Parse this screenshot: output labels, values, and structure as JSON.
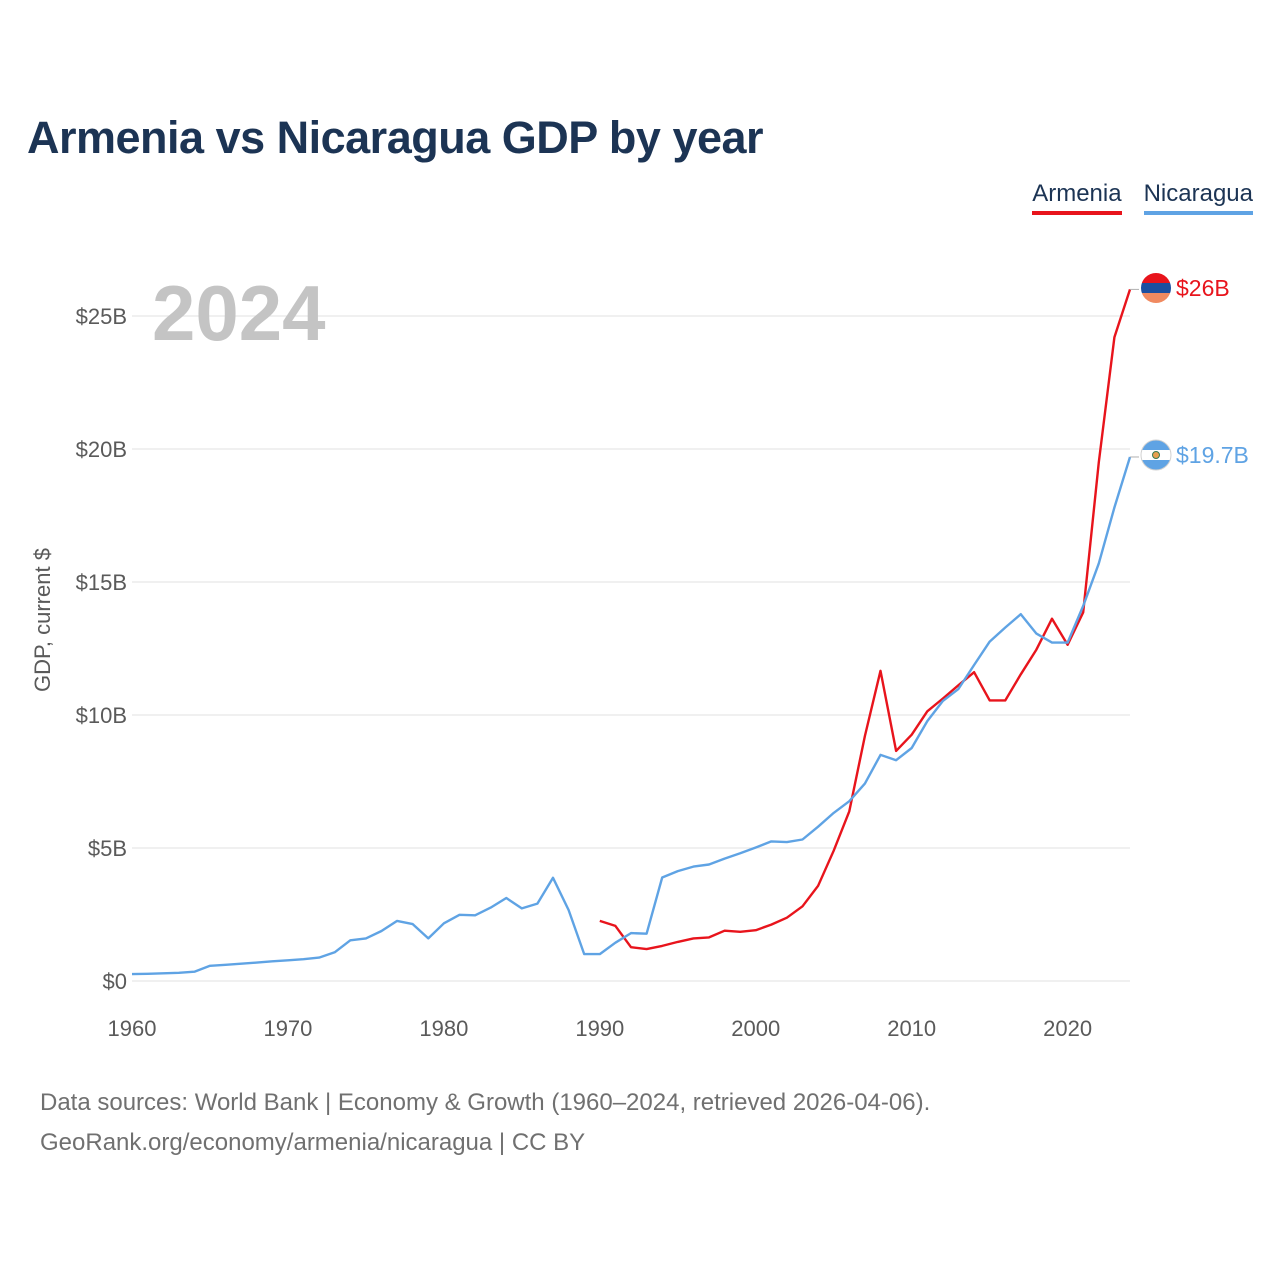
{
  "title": "Armenia vs Nicaragua GDP by year",
  "legend": {
    "armenia": "Armenia",
    "nicaragua": "Nicaragua"
  },
  "year_label": "2024",
  "source": {
    "line1": "Data sources: World Bank | Economy & Growth (1960–2024, retrieved 2026-04-06).",
    "line2": "GeoRank.org/economy/armenia/nicaragua | CC BY"
  },
  "colors": {
    "armenia": "#e8141c",
    "nicaragua": "#5fa3e4",
    "grid": "#e6e6e6",
    "title": "#1c3454"
  },
  "chart_data": {
    "type": "line",
    "title": "Armenia vs Nicaragua GDP by year",
    "xlabel": "",
    "ylabel": "GDP, current $",
    "xlim": [
      1960,
      2024
    ],
    "ylim": [
      0,
      27
    ],
    "x_ticks": [
      1960,
      1970,
      1980,
      1990,
      2000,
      2010,
      2020
    ],
    "y_ticks": [
      {
        "value": 0,
        "label": "$0"
      },
      {
        "value": 5,
        "label": "$5B"
      },
      {
        "value": 10,
        "label": "$10B"
      },
      {
        "value": 15,
        "label": "$15B"
      },
      {
        "value": 20,
        "label": "$20B"
      },
      {
        "value": 25,
        "label": "$25B"
      }
    ],
    "series": [
      {
        "name": "Armenia",
        "color": "#e8141c",
        "end_label": "$26B",
        "icon": "armenia-flag-icon",
        "x": [
          1990,
          1991,
          1992,
          1993,
          1994,
          1995,
          1996,
          1997,
          1998,
          1999,
          2000,
          2001,
          2002,
          2003,
          2004,
          2005,
          2006,
          2007,
          2008,
          2009,
          2010,
          2011,
          2012,
          2013,
          2014,
          2015,
          2016,
          2017,
          2018,
          2019,
          2020,
          2021,
          2022,
          2023,
          2024
        ],
        "values": [
          2.26,
          2.07,
          1.27,
          1.2,
          1.32,
          1.47,
          1.6,
          1.64,
          1.89,
          1.85,
          1.91,
          2.12,
          2.38,
          2.81,
          3.58,
          4.9,
          6.38,
          9.21,
          11.66,
          8.65,
          9.26,
          10.14,
          10.62,
          11.12,
          11.61,
          10.55,
          10.55,
          11.53,
          12.46,
          13.62,
          12.64,
          13.86,
          19.5,
          24.2,
          26.0
        ]
      },
      {
        "name": "Nicaragua",
        "color": "#5fa3e4",
        "end_label": "$19.7B",
        "icon": "nicaragua-flag-icon",
        "x": [
          1960,
          1961,
          1962,
          1963,
          1964,
          1965,
          1966,
          1967,
          1968,
          1969,
          1970,
          1971,
          1972,
          1973,
          1974,
          1975,
          1976,
          1977,
          1978,
          1979,
          1980,
          1981,
          1982,
          1983,
          1984,
          1985,
          1986,
          1987,
          1988,
          1989,
          1990,
          1991,
          1992,
          1993,
          1994,
          1995,
          1996,
          1997,
          1998,
          1999,
          2000,
          2001,
          2002,
          2003,
          2004,
          2005,
          2006,
          2007,
          2008,
          2009,
          2010,
          2011,
          2012,
          2013,
          2014,
          2015,
          2016,
          2017,
          2018,
          2019,
          2020,
          2021,
          2022,
          2023,
          2024
        ],
        "values": [
          0.26,
          0.27,
          0.29,
          0.31,
          0.35,
          0.57,
          0.61,
          0.65,
          0.69,
          0.74,
          0.78,
          0.82,
          0.88,
          1.08,
          1.53,
          1.6,
          1.88,
          2.26,
          2.14,
          1.6,
          2.17,
          2.49,
          2.47,
          2.76,
          3.12,
          2.73,
          2.91,
          3.88,
          2.67,
          1.01,
          1.01,
          1.44,
          1.8,
          1.78,
          3.89,
          4.13,
          4.3,
          4.38,
          4.6,
          4.8,
          5.02,
          5.25,
          5.22,
          5.32,
          5.8,
          6.32,
          6.76,
          7.42,
          8.5,
          8.3,
          8.76,
          9.77,
          10.53,
          10.98,
          11.88,
          12.76,
          13.29,
          13.79,
          13.06,
          12.72,
          12.72,
          14.1,
          15.7,
          17.8,
          19.7
        ]
      }
    ]
  }
}
